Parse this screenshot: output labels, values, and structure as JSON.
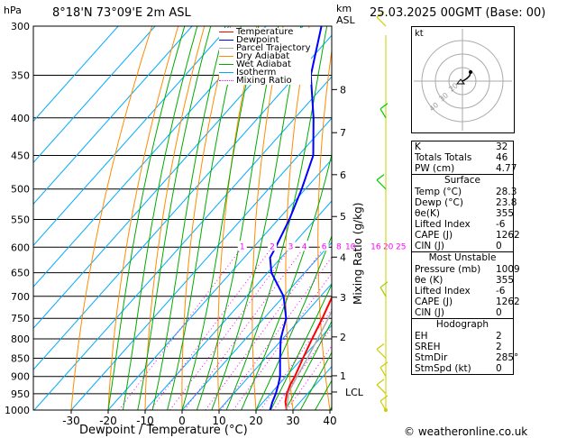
{
  "header": {
    "units_hpa": "hPa",
    "location": "8°18'N 73°09'E 2m ASL",
    "units_km": "km",
    "units_asl": "ASL",
    "datetime": "25.03.2025 00GMT (Base: 00)"
  },
  "footer": {
    "copyright": "© weatheronline.co.uk"
  },
  "legend": [
    {
      "label": "Temperature",
      "color": "#ff0000",
      "style": "solid"
    },
    {
      "label": "Dewpoint",
      "color": "#0000ff",
      "style": "solid"
    },
    {
      "label": "Parcel Trajectory",
      "color": "#aaaaaa",
      "style": "solid"
    },
    {
      "label": "Dry Adiabat",
      "color": "#ff8c00",
      "style": "solid"
    },
    {
      "label": "Wet Adiabat",
      "color": "#00aa00",
      "style": "solid"
    },
    {
      "label": "Isotherm",
      "color": "#00aaff",
      "style": "solid"
    },
    {
      "label": "Mixing Ratio",
      "color": "#ff00ff",
      "style": "dotted"
    }
  ],
  "chart_data": {
    "type": "line",
    "xlabel": "Dewpoint / Temperature (°C)",
    "ylabel_right": "Mixing Ratio (g/kg)",
    "x_ticks": [
      -30,
      -20,
      -10,
      0,
      10,
      20,
      30,
      40
    ],
    "xlim": [
      -35,
      40
    ],
    "pressure_levels": [
      300,
      350,
      400,
      450,
      500,
      550,
      600,
      650,
      700,
      750,
      800,
      850,
      900,
      950,
      1000
    ],
    "ylim": [
      1000,
      300
    ],
    "skew_deg_per_log": 77,
    "km_ticks": [
      {
        "label": "1",
        "p": 898
      },
      {
        "label": "2",
        "p": 795
      },
      {
        "label": "3",
        "p": 702
      },
      {
        "label": "4",
        "p": 619
      },
      {
        "label": "5",
        "p": 545
      },
      {
        "label": "6",
        "p": 478
      },
      {
        "label": "7",
        "p": 419
      },
      {
        "label": "8",
        "p": 366
      }
    ],
    "lcl": {
      "label": "LCL",
      "p": 945
    },
    "mixing_ratio_labels": [
      "1",
      "2",
      "3",
      "4",
      "6",
      "8",
      "10",
      "16",
      "20",
      "25"
    ],
    "mixing_ratio_values": [
      1,
      2,
      3,
      4,
      6,
      8,
      10,
      16,
      20,
      25
    ],
    "series": [
      {
        "name": "Temperature",
        "color": "#ff0000",
        "points": [
          [
            1000,
            28.3
          ],
          [
            975,
            26
          ],
          [
            950,
            24.4
          ],
          [
            925,
            23.2
          ],
          [
            900,
            22.4
          ],
          [
            850,
            20.2
          ],
          [
            800,
            18
          ],
          [
            750,
            15.8
          ],
          [
            700,
            13.2
          ],
          [
            650,
            10
          ],
          [
            600,
            6.2
          ],
          [
            550,
            1.8
          ],
          [
            500,
            -3.3
          ],
          [
            450,
            -8.4
          ],
          [
            400,
            -14.5
          ],
          [
            370,
            -19.5
          ]
        ]
      },
      {
        "name": "Dewpoint",
        "color": "#0000ff",
        "points": [
          [
            1000,
            23.8
          ],
          [
            975,
            22.5
          ],
          [
            950,
            21.4
          ],
          [
            925,
            20
          ],
          [
            900,
            18.4
          ],
          [
            850,
            14
          ],
          [
            800,
            9.5
          ],
          [
            750,
            6
          ],
          [
            700,
            0
          ],
          [
            650,
            -9
          ],
          [
            620,
            -13
          ],
          [
            600,
            -14
          ],
          [
            550,
            -17
          ],
          [
            500,
            -21
          ],
          [
            450,
            -26
          ],
          [
            400,
            -35
          ],
          [
            350,
            -46
          ],
          [
            300,
            -55
          ]
        ]
      },
      {
        "name": "Parcel Trajectory",
        "color": "#aaaaaa",
        "points": [
          [
            1000,
            28.3
          ],
          [
            945,
            24.5
          ],
          [
            900,
            23
          ],
          [
            850,
            21.4
          ],
          [
            800,
            19.5
          ],
          [
            750,
            17.4
          ],
          [
            700,
            15
          ],
          [
            650,
            12.4
          ],
          [
            600,
            9.4
          ],
          [
            550,
            6
          ],
          [
            500,
            2
          ],
          [
            450,
            -2.8
          ],
          [
            400,
            -8.7
          ],
          [
            370,
            -13
          ]
        ]
      }
    ]
  },
  "hodograph": {
    "label": "kt",
    "ring_labels": [
      "20",
      "30",
      "40"
    ],
    "trace_points": [
      [
        0,
        0
      ],
      [
        2,
        1
      ],
      [
        5,
        3
      ],
      [
        8,
        6
      ],
      [
        9,
        10
      ]
    ]
  },
  "indices": {
    "k_label": "K",
    "k": "32",
    "tt_label": "Totals Totals",
    "tt": "46",
    "pw_label": "PW (cm)",
    "pw": "4.77",
    "surface": {
      "title": "Surface",
      "temp_label": "Temp (°C)",
      "temp": "28.3",
      "dewp_label": "Dewp (°C)",
      "dewp": "23.8",
      "theta_label": "θe(K)",
      "theta": "355",
      "li_label": "Lifted Index",
      "li": "-6",
      "cape_label": "CAPE (J)",
      "cape": "1262",
      "cin_label": "CIN (J)",
      "cin": "0"
    },
    "most_unstable": {
      "title": "Most Unstable",
      "pressure_label": "Pressure (mb)",
      "pressure": "1009",
      "theta_label": "θe (K)",
      "theta": "355",
      "li_label": "Lifted Index",
      "li": "-6",
      "cape_label": "CAPE (J)",
      "cape": "1262",
      "cin_label": "CIN (J)",
      "cin": "0"
    },
    "hodograph_box": {
      "title": "Hodograph",
      "eh_label": "EH",
      "eh": "2",
      "sreh_label": "SREH",
      "sreh": "2",
      "stmdir_label": "StmDir",
      "stmdir": "285°",
      "stmspd_label": "StmSpd (kt)",
      "stmspd": "0"
    }
  },
  "wind_barbs": [
    {
      "p": 300,
      "color": "#cccc00"
    },
    {
      "p": 400,
      "color": "#00cc00"
    },
    {
      "p": 500,
      "color": "#00cc00"
    },
    {
      "p": 700,
      "color": "#99cc00"
    },
    {
      "p": 850,
      "color": "#cccc00"
    },
    {
      "p": 900,
      "color": "#cccc00"
    },
    {
      "p": 950,
      "color": "#cccc00"
    },
    {
      "p": 1000,
      "color": "#cccc00"
    }
  ]
}
